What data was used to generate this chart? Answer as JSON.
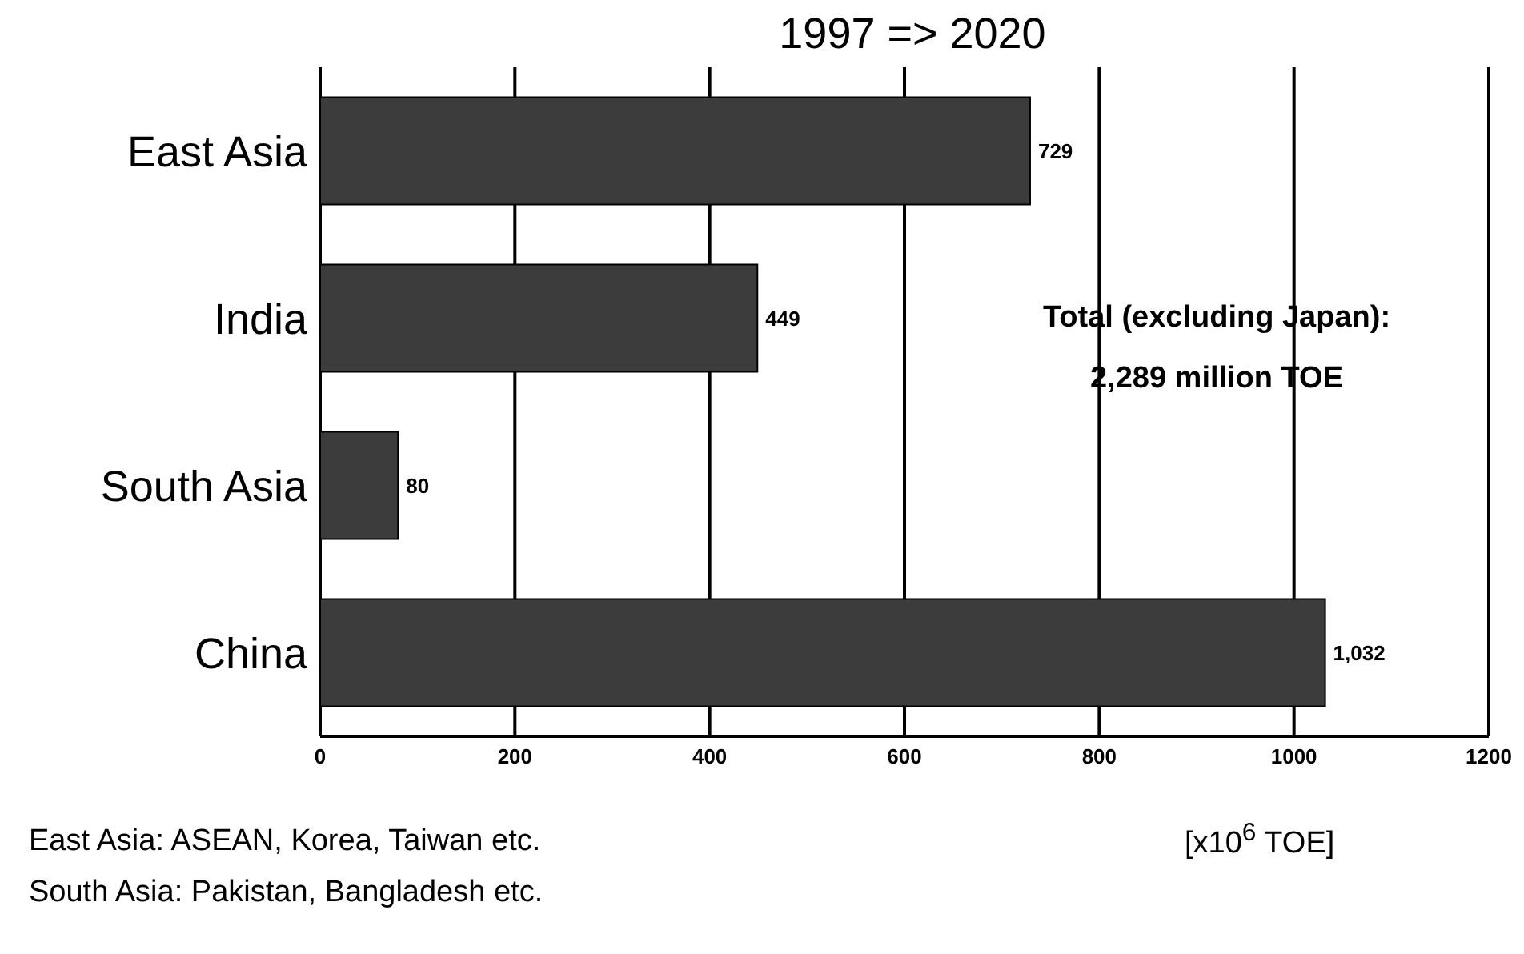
{
  "chart_data": {
    "type": "bar",
    "orientation": "horizontal",
    "title": "1997 => 2020",
    "categories": [
      "East Asia",
      "India",
      "South Asia",
      "China"
    ],
    "values": [
      729,
      449,
      80,
      1032
    ],
    "value_labels": [
      "729",
      "449",
      "80",
      "1,032"
    ],
    "color": "#3c3c3c",
    "xlim": [
      0,
      1200
    ],
    "xticks": [
      0,
      200,
      400,
      600,
      800,
      1000,
      1200
    ],
    "xlabel": "[x10$^{6}$ TOE]",
    "grid": "x",
    "annotations": [
      "Total (excluding Japan):",
      "2,289 million TOE",
      "East Asia: ASEAN, Korea, Taiwan etc.",
      "South Asia: Pakistan, Bangladesh etc."
    ]
  }
}
